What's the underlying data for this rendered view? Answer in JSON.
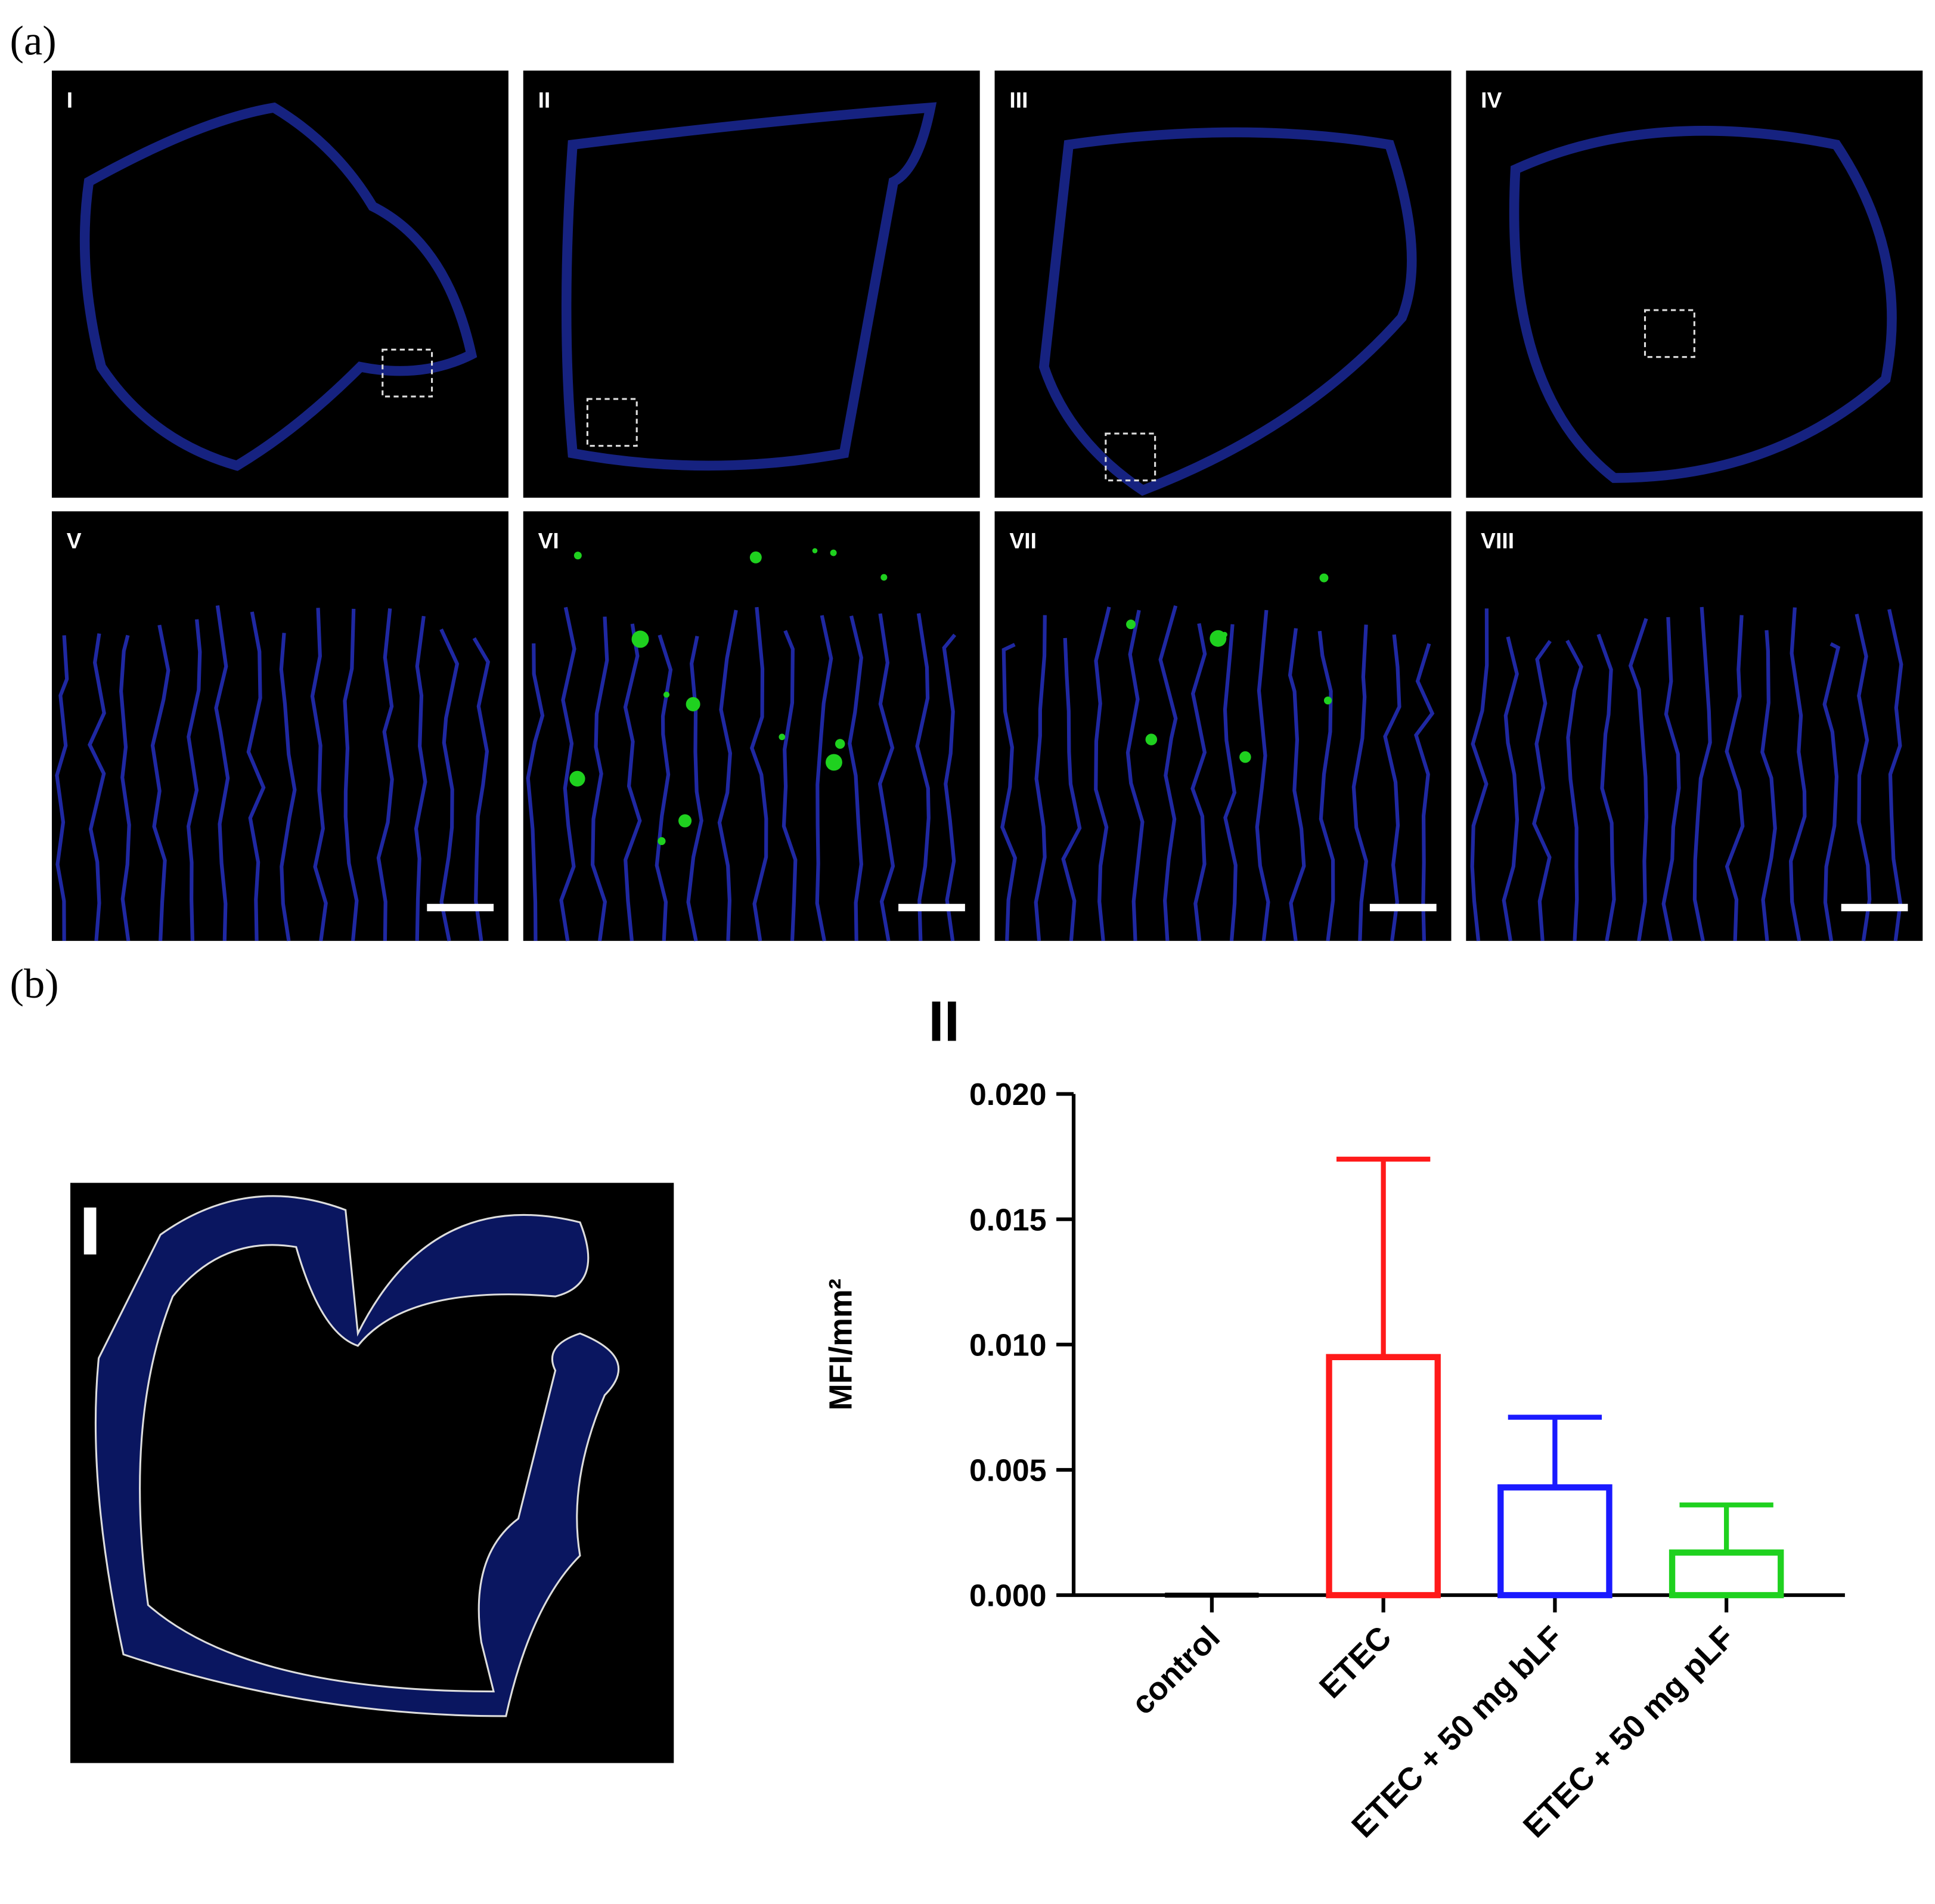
{
  "figure_labels": [
    "(a)",
    "(b)"
  ],
  "panels_a": [
    "I",
    "II",
    "III",
    "IV",
    "V",
    "VI",
    "VII",
    "VIII"
  ],
  "panel_b_image": "I",
  "chart_data": {
    "type": "bar",
    "title": "II",
    "ylabel": "MFI/mm²",
    "categories": [
      "control",
      "ETEC",
      "ETEC + 50 mg bLF",
      "ETEC + 50 mg pLF"
    ],
    "values": [
      0,
      0.0095,
      0.0043,
      0.0017
    ],
    "errors": [
      0,
      0.0079,
      0.0028,
      0.0019
    ],
    "colors": [
      "#000000",
      "#ff1a1a",
      "#1a1aff",
      "#1fd11f"
    ],
    "ylim": [
      0,
      0.02
    ],
    "yticks": [
      {
        "value": 0,
        "label": "0.000"
      },
      {
        "value": 0.005,
        "label": "0.005"
      },
      {
        "value": 0.01,
        "label": "0.010"
      },
      {
        "value": 0.015,
        "label": "0.015"
      },
      {
        "value": 0.02,
        "label": "0.020"
      }
    ]
  }
}
